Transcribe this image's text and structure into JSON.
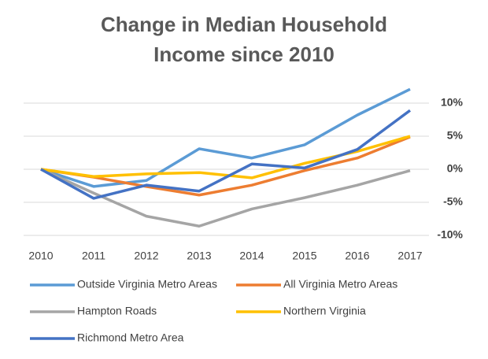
{
  "chart_data": {
    "type": "line",
    "title": "Change in Median Household Income since 2010",
    "categories": [
      "2010",
      "2011",
      "2012",
      "2013",
      "2014",
      "2015",
      "2016",
      "2017"
    ],
    "series": [
      {
        "name": "Outside Virginia Metro Areas",
        "color": "#5b9bd5",
        "values": [
          0,
          -2.6,
          -1.7,
          3.1,
          1.7,
          3.7,
          8.2,
          12.1
        ]
      },
      {
        "name": "All Virginia Metro Areas",
        "color": "#ed7d31",
        "values": [
          0,
          -1.2,
          -2.6,
          -3.9,
          -2.4,
          -0.2,
          1.7,
          4.9
        ]
      },
      {
        "name": "Hampton Roads",
        "color": "#a5a5a5",
        "values": [
          0,
          -3.6,
          -7.1,
          -8.6,
          -6.0,
          -4.3,
          -2.4,
          -0.2
        ]
      },
      {
        "name": "Northern Virginia",
        "color": "#ffc000",
        "values": [
          0,
          -1.1,
          -0.7,
          -0.5,
          -1.3,
          0.9,
          2.7,
          5.0
        ]
      },
      {
        "name": "Richmond Metro Area",
        "color": "#4472c4",
        "values": [
          0,
          -4.4,
          -2.4,
          -3.3,
          0.8,
          0.2,
          3.0,
          8.9
        ]
      }
    ],
    "ylim": [
      -10,
      10
    ],
    "yticks": [
      {
        "value": 10,
        "label": "10%"
      },
      {
        "value": 5,
        "label": "5%"
      },
      {
        "value": 0,
        "label": "0%"
      },
      {
        "value": -5,
        "label": "-5%"
      },
      {
        "value": -10,
        "label": "-10%"
      }
    ],
    "grid": true
  }
}
